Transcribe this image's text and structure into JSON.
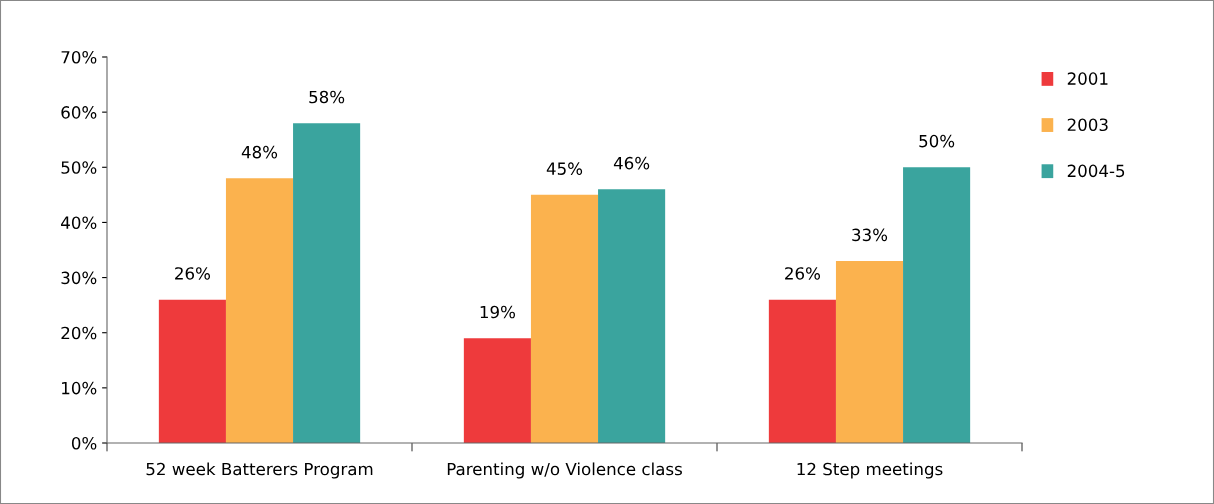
{
  "chart_data": {
    "type": "bar",
    "categories": [
      "52 week Batterers Program",
      "Parenting w/o Violence class",
      "12 Step meetings"
    ],
    "series": [
      {
        "name": "2001",
        "color": "#ee3a3c",
        "values": [
          26,
          19,
          26
        ],
        "value_labels": [
          "26%",
          "19%",
          "26%"
        ]
      },
      {
        "name": "2003",
        "color": "#fbb24e",
        "values": [
          48,
          45,
          33
        ],
        "value_labels": [
          "48%",
          "45%",
          "33%"
        ]
      },
      {
        "name": "2004-5",
        "color": "#3aa49e",
        "values": [
          58,
          46,
          50
        ],
        "value_labels": [
          "58%",
          "46%",
          "50%"
        ]
      }
    ],
    "ylim": [
      0,
      70
    ],
    "yticks": [
      {
        "value": 0,
        "label": "0%"
      },
      {
        "value": 10,
        "label": "10%"
      },
      {
        "value": 20,
        "label": "20%"
      },
      {
        "value": 30,
        "label": "30%"
      },
      {
        "value": 40,
        "label": "40%"
      },
      {
        "value": 50,
        "label": "50%"
      },
      {
        "value": 60,
        "label": "60%"
      },
      {
        "value": 70,
        "label": "70%"
      }
    ],
    "grid": false,
    "legend": "right"
  }
}
